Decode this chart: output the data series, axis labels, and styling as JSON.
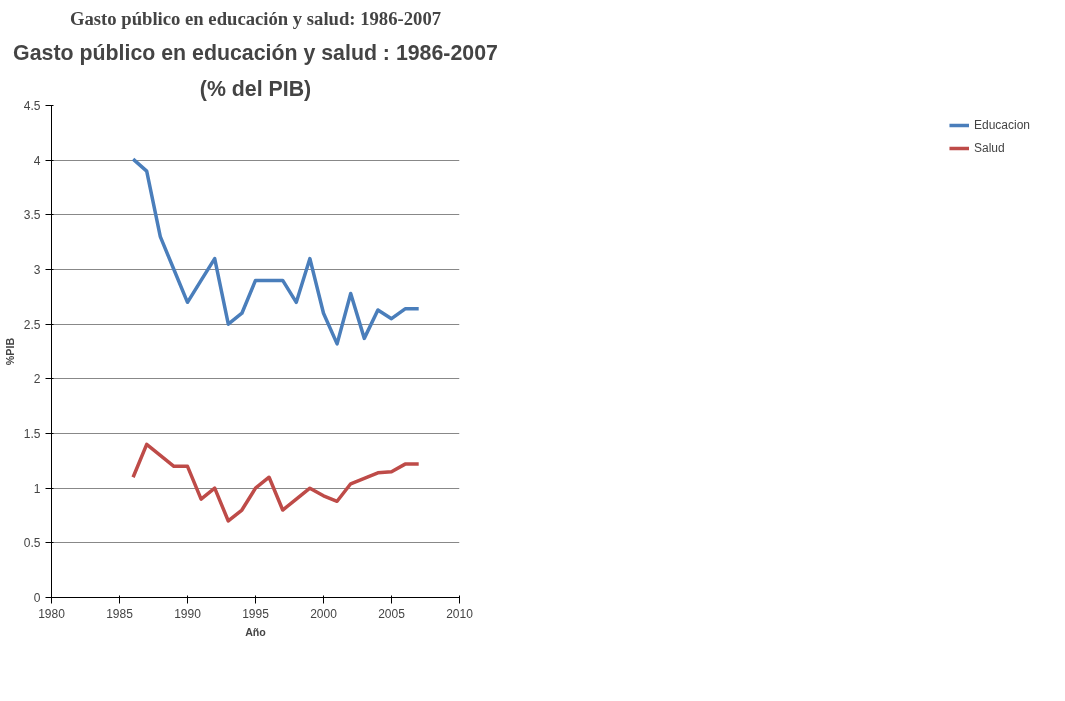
{
  "chart_data": {
    "type": "line",
    "title": "Gasto público en educación y salud : 1986-2007",
    "subtitle": "(% del PIB)",
    "xlabel": "Año",
    "ylabel": "%PIB",
    "annotations": [
      "Gasto público en educación y salud: 1986-2007"
    ],
    "x": [
      1986,
      1987,
      1988,
      1989,
      1990,
      1991,
      1992,
      1993,
      1994,
      1995,
      1996,
      1997,
      1998,
      1999,
      2000,
      2001,
      2002,
      2003,
      2004,
      2005,
      2006,
      2007
    ],
    "series": [
      {
        "name": "Educacion",
        "color": "#4a7ebb",
        "values": [
          4.01,
          3.9,
          3.3,
          3.0,
          2.7,
          2.9,
          3.1,
          2.5,
          2.6,
          2.9,
          2.9,
          2.9,
          2.7,
          3.1,
          2.6,
          2.32,
          2.78,
          2.37,
          2.63,
          2.55,
          2.64,
          2.64
        ]
      },
      {
        "name": "Salud",
        "color": "#be4b48",
        "values": [
          1.1,
          1.4,
          1.3,
          1.2,
          1.2,
          0.9,
          1.0,
          0.7,
          0.8,
          1.0,
          1.1,
          0.8,
          0.9,
          1.0,
          0.93,
          0.88,
          1.04,
          1.09,
          1.14,
          1.15,
          1.22,
          1.22
        ]
      }
    ],
    "xlim": [
      1980,
      2010
    ],
    "xticks": [
      1980,
      1985,
      1990,
      1995,
      2000,
      2005,
      2010
    ],
    "ylim": [
      0,
      4.5
    ],
    "yticks": [
      0,
      0.5,
      1,
      1.5,
      2,
      2.5,
      3,
      3.5,
      4,
      4.5
    ],
    "grid": "y",
    "legend": "right",
    "marker": "none",
    "line_style": "solid"
  }
}
